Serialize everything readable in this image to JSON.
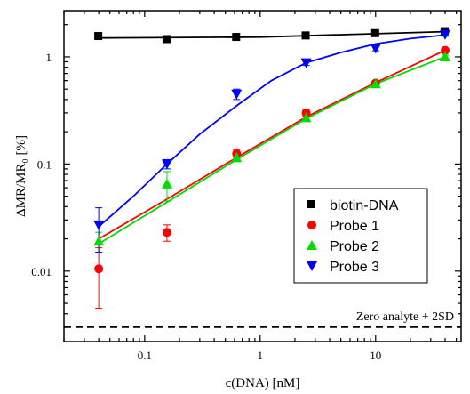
{
  "chart_data": {
    "type": "scatter",
    "xlabel": "c(DNA) [nM]",
    "ylabel": "ΔMR/MR₀ [%]",
    "xscale": "log",
    "yscale": "log",
    "xlim": [
      0.02,
      55
    ],
    "ylim": [
      0.0022,
      2.7
    ],
    "x_ticks": [
      0.1,
      1,
      10
    ],
    "x_tick_labels": [
      "0.1",
      "1",
      "10"
    ],
    "y_ticks": [
      0.01,
      0.1,
      1
    ],
    "y_tick_labels": [
      "0.01",
      "0.1",
      "1"
    ],
    "legend_position": "lower-right",
    "reference_line": {
      "value": 0.003,
      "label": "Zero analyte + 2SD",
      "style": "dashed",
      "color": "#000000"
    },
    "series": [
      {
        "name": "biotin-DNA",
        "marker": "square",
        "color": "#000000",
        "x": [
          0.04,
          0.156,
          0.625,
          2.5,
          10,
          40
        ],
        "y": [
          1.55,
          1.45,
          1.52,
          1.57,
          1.65,
          1.72
        ],
        "err": [
          0.05,
          0.05,
          0.04,
          0.04,
          0.05,
          0.05
        ],
        "fit": {
          "x": [
            0.04,
            1,
            40
          ],
          "y": [
            1.5,
            1.53,
            1.72
          ]
        }
      },
      {
        "name": "Probe 1",
        "marker": "circle",
        "color": "#ff0000",
        "x": [
          0.04,
          0.156,
          0.625,
          2.5,
          10,
          40
        ],
        "y": [
          0.0105,
          0.023,
          0.125,
          0.3,
          0.57,
          1.15
        ],
        "err": [
          0.006,
          0.004,
          0.01,
          0.02,
          0.03,
          0.05
        ],
        "fit": {
          "x": [
            0.04,
            0.156,
            0.625,
            2.5,
            10,
            40
          ],
          "y": [
            0.02,
            0.047,
            0.115,
            0.275,
            0.575,
            1.15
          ]
        }
      },
      {
        "name": "Probe 2",
        "marker": "triangle-up",
        "color": "#00dd00",
        "x": [
          0.04,
          0.156,
          0.625,
          2.5,
          10,
          40
        ],
        "y": [
          0.019,
          0.065,
          0.115,
          0.27,
          0.56,
          1.0
        ],
        "err": [
          0.004,
          0.02,
          0.01,
          0.02,
          0.03,
          0.04
        ],
        "fit": {
          "x": [
            0.04,
            0.156,
            0.625,
            2.5,
            10,
            40
          ],
          "y": [
            0.018,
            0.044,
            0.11,
            0.265,
            0.56,
            1.0
          ]
        }
      },
      {
        "name": "Probe 3",
        "marker": "triangle-down",
        "color": "#0000ff",
        "x": [
          0.04,
          0.156,
          0.625,
          2.5,
          10,
          40
        ],
        "y": [
          0.027,
          0.1,
          0.45,
          0.88,
          1.2,
          1.62
        ],
        "err": [
          0.012,
          0.01,
          0.05,
          0.05,
          0.06,
          0.06
        ],
        "fit": {
          "x": [
            0.04,
            0.08,
            0.156,
            0.3,
            0.625,
            1.25,
            2.5,
            5,
            10,
            20,
            40
          ],
          "y": [
            0.026,
            0.05,
            0.1,
            0.19,
            0.35,
            0.6,
            0.88,
            1.1,
            1.32,
            1.48,
            1.6
          ]
        }
      }
    ]
  }
}
